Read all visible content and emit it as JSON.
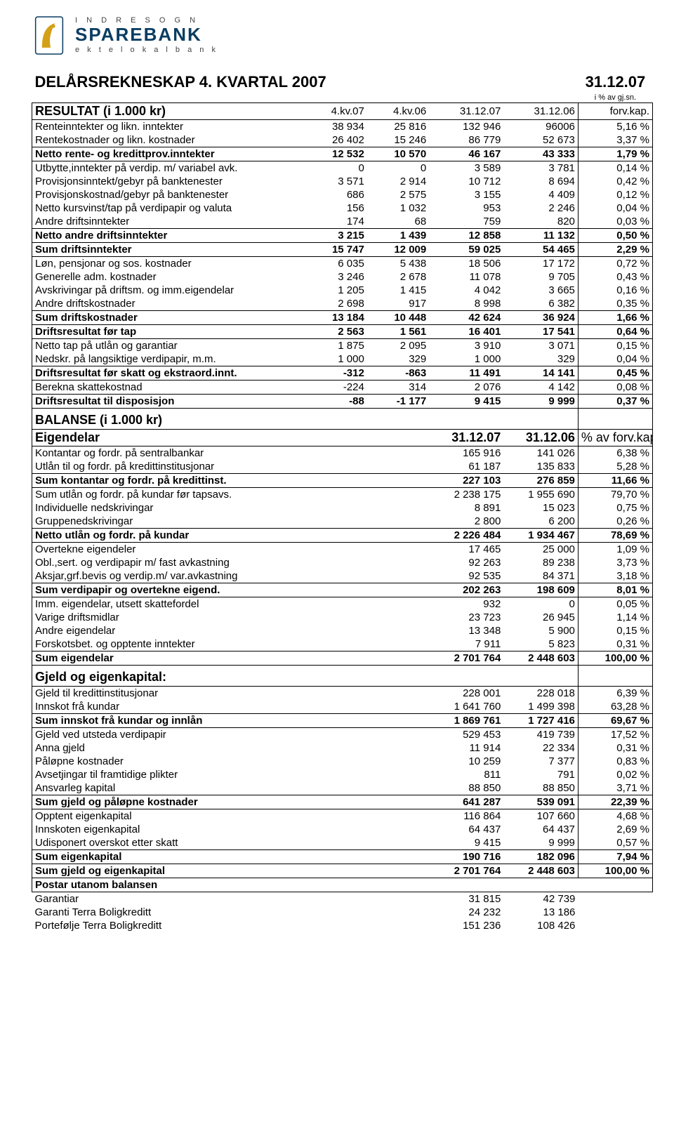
{
  "logo": {
    "top": "I N D R E   S O G N",
    "main": "SPAREBANK",
    "sub": "e k t e   l o k a l b a n k",
    "icon_color": "#d4a017",
    "border_color": "#0a3d62"
  },
  "title": "DELÅRSREKNESKAP 4. KVARTAL 2007",
  "date_hdr": "31.12.07",
  "pct_hdr": "i % av gj.sn.",
  "resultat_label": "RESULTAT  (i 1.000 kr)",
  "columns": {
    "c1": "4.kv.07",
    "c2": "4.kv.06",
    "c3": "31.12.07",
    "c4": "31.12.06",
    "c5": "forv.kap."
  },
  "sections": [
    {
      "group": "resultat",
      "rows": [
        {
          "label": "Renteinntekter og likn. inntekter",
          "v": [
            "38 934",
            "25 816",
            "132 946",
            "96006",
            "5,16 %"
          ]
        },
        {
          "label": "Rentekostnader og likn. kostnader",
          "v": [
            "26 402",
            "15 246",
            "86 779",
            "52 673",
            "3,37 %"
          ]
        }
      ]
    },
    {
      "group": "netto_rente",
      "bold": true,
      "rows": [
        {
          "label": "Netto rente- og kredittprov.inntekter",
          "v": [
            "12 532",
            "10 570",
            "46 167",
            "43 333",
            "1,79 %"
          ]
        }
      ]
    },
    {
      "group": "r2",
      "rows": [
        {
          "label": "Utbytte,inntekter på verdip. m/ variabel avk.",
          "v": [
            "0",
            "0",
            "3 589",
            "3 781",
            "0,14 %"
          ]
        },
        {
          "label": "Provisjonsinntekt/gebyr på banktenester",
          "v": [
            "3 571",
            "2 914",
            "10 712",
            "8 694",
            "0,42 %"
          ]
        },
        {
          "label": "Provisjonskostnad/gebyr på banktenester",
          "v": [
            "686",
            "2 575",
            "3 155",
            "4 409",
            "0,12 %"
          ]
        },
        {
          "label": "Netto kursvinst/tap på verdipapir og valuta",
          "v": [
            "156",
            "1 032",
            "953",
            "2 246",
            "0,04 %"
          ]
        },
        {
          "label": "Andre driftsinntekter",
          "v": [
            "174",
            "68",
            "759",
            "820",
            "0,03 %"
          ]
        }
      ]
    },
    {
      "group": "netto_andre",
      "bold": true,
      "rows": [
        {
          "label": "Netto andre driftsinntekter",
          "v": [
            "3 215",
            "1 439",
            "12 858",
            "11 132",
            "0,50 %"
          ]
        }
      ]
    },
    {
      "group": "sum_drift_innt",
      "bold": true,
      "rows": [
        {
          "label": "Sum driftsinntekter",
          "v": [
            "15 747",
            "12 009",
            "59 025",
            "54 465",
            "2,29 %"
          ]
        }
      ]
    },
    {
      "group": "r3",
      "rows": [
        {
          "label": "Løn, pensjonar og sos. kostnader",
          "v": [
            "6 035",
            "5 438",
            "18 506",
            "17 172",
            "0,72 %"
          ]
        },
        {
          "label": "Generelle adm. kostnader",
          "v": [
            "3 246",
            "2 678",
            "11 078",
            "9 705",
            "0,43 %"
          ]
        },
        {
          "label": "Avskrivingar på driftsm. og imm.eigendelar",
          "v": [
            "1 205",
            "1 415",
            "4 042",
            "3 665",
            "0,16 %"
          ]
        },
        {
          "label": "Andre driftskostnader",
          "v": [
            "2 698",
            "917",
            "8 998",
            "6 382",
            "0,35 %"
          ]
        }
      ]
    },
    {
      "group": "sum_drift_kost",
      "bold": true,
      "rows": [
        {
          "label": "Sum driftskostnader",
          "v": [
            "13 184",
            "10 448",
            "42 624",
            "36 924",
            "1,66 %"
          ]
        }
      ]
    },
    {
      "group": "dr_for_tap",
      "bold": true,
      "rows": [
        {
          "label": "Driftsresultat før tap",
          "v": [
            "2 563",
            "1 561",
            "16 401",
            "17 541",
            "0,64 %"
          ]
        }
      ]
    },
    {
      "group": "r4",
      "rows": [
        {
          "label": "Netto tap på utlån og garantiar",
          "v": [
            "1 875",
            "2 095",
            "3 910",
            "3 071",
            "0,15 %"
          ]
        },
        {
          "label": "Nedskr. på langsiktige verdipapir, m.m.",
          "v": [
            "1 000",
            "329",
            "1 000",
            "329",
            "0,04 %"
          ]
        }
      ]
    },
    {
      "group": "dr_for_skatt",
      "bold": true,
      "rows": [
        {
          "label": "Driftsresultat før skatt og ekstraord.innt.",
          "v": [
            "-312",
            "-863",
            "11 491",
            "14 141",
            "0,45 %"
          ]
        }
      ]
    },
    {
      "group": "r5",
      "rows": [
        {
          "label": "Berekna skattekostnad",
          "v": [
            "-224",
            "314",
            "2 076",
            "4 142",
            "0,08 %"
          ]
        }
      ]
    },
    {
      "group": "dr_disp",
      "bold": true,
      "rows": [
        {
          "label": "Driftsresultat til disposisjon",
          "v": [
            "-88",
            "-1 177",
            "9 415",
            "9 999",
            "0,37 %"
          ]
        }
      ]
    }
  ],
  "balanse_title": "BALANSE   (i 1.000 kr)",
  "eigendelar_label": "Eigendelar",
  "bal_cols": {
    "c3": "31.12.07",
    "c4": "31.12.06",
    "c5": "% av forv.kap."
  },
  "bal_sections": [
    {
      "group": "b1",
      "rows": [
        {
          "label": "Kontantar og fordr. på sentralbankar",
          "v": [
            "",
            "",
            "165 916",
            "141 026",
            "6,38 %"
          ]
        },
        {
          "label": "Utlån til og fordr. på kredittinstitusjonar",
          "v": [
            "",
            "",
            "61 187",
            "135 833",
            "5,28 %"
          ]
        }
      ]
    },
    {
      "group": "sum_kont",
      "bold": true,
      "rows": [
        {
          "label": "Sum kontantar og fordr. på kredittinst.",
          "v": [
            "",
            "",
            "227 103",
            "276 859",
            "11,66 %"
          ]
        }
      ]
    },
    {
      "group": "b2",
      "rows": [
        {
          "label": "Sum utlån og fordr. på kundar før tapsavs.",
          "v": [
            "",
            "",
            "2 238 175",
            "1 955 690",
            "79,70 %"
          ]
        },
        {
          "label": "Individuelle nedskrivingar",
          "v": [
            "",
            "",
            "8 891",
            "15 023",
            "0,75 %"
          ]
        },
        {
          "label": "Gruppenedskrivingar",
          "v": [
            "",
            "",
            "2 800",
            "6 200",
            "0,26 %"
          ]
        }
      ]
    },
    {
      "group": "netto_utlan",
      "bold": true,
      "rows": [
        {
          "label": "Netto utlån og fordr. på kundar",
          "v": [
            "",
            "",
            "2 226 484",
            "1 934 467",
            "78,69 %"
          ]
        }
      ]
    },
    {
      "group": "b3",
      "rows": [
        {
          "label": "Overtekne eigendeler",
          "v": [
            "",
            "",
            "17 465",
            "25 000",
            "1,09 %"
          ]
        },
        {
          "label": "Obl.,sert. og verdipapir m/ fast avkastning",
          "v": [
            "",
            "",
            "92 263",
            "89 238",
            "3,73 %"
          ]
        },
        {
          "label": "Aksjar,grf.bevis og verdip.m/ var.avkastning",
          "v": [
            "",
            "",
            "92 535",
            "84 371",
            "3,18 %"
          ]
        }
      ]
    },
    {
      "group": "sum_verdi",
      "bold": true,
      "rows": [
        {
          "label": "Sum verdipapir og overtekne eigend.",
          "v": [
            "",
            "",
            "202 263",
            "198 609",
            "8,01 %"
          ]
        }
      ]
    },
    {
      "group": "b4",
      "rows": [
        {
          "label": "Imm. eigendelar, utsett skattefordel",
          "v": [
            "",
            "",
            "932",
            "0",
            "0,05 %"
          ]
        },
        {
          "label": "Varige driftsmidlar",
          "v": [
            "",
            "",
            "23 723",
            "26 945",
            "1,14 %"
          ]
        },
        {
          "label": "Andre eigendelar",
          "v": [
            "",
            "",
            "13 348",
            "5 900",
            "0,15 %"
          ]
        },
        {
          "label": "Forskotsbet. og opptente inntekter",
          "v": [
            "",
            "",
            "7 911",
            "5 823",
            "0,31 %"
          ]
        }
      ]
    },
    {
      "group": "sum_eig",
      "bold": true,
      "rows": [
        {
          "label": "Sum eigendelar",
          "v": [
            "",
            "",
            "2 701 764",
            "2 448 603",
            "100,00 %"
          ]
        }
      ]
    }
  ],
  "gjeld_title": "Gjeld og eigenkapital:",
  "gjeld_sections": [
    {
      "group": "g1",
      "rows": [
        {
          "label": "Gjeld til kredittinstitusjonar",
          "v": [
            "",
            "",
            "228 001",
            "228 018",
            "6,39 %"
          ]
        },
        {
          "label": "Innskot frå kundar",
          "v": [
            "",
            "",
            "1 641 760",
            "1 499 398",
            "63,28 %"
          ]
        }
      ]
    },
    {
      "group": "sum_innsk",
      "bold": true,
      "rows": [
        {
          "label": "Sum innskot frå kundar og innlån",
          "v": [
            "",
            "",
            "1 869 761",
            "1 727 416",
            "69,67 %"
          ]
        }
      ]
    },
    {
      "group": "g2",
      "rows": [
        {
          "label": "Gjeld ved utsteda verdipapir",
          "v": [
            "",
            "",
            "529 453",
            "419 739",
            "17,52 %"
          ]
        },
        {
          "label": "Anna gjeld",
          "v": [
            "",
            "",
            "11 914",
            "22 334",
            "0,31 %"
          ]
        },
        {
          "label": "Påløpne kostnader",
          "v": [
            "",
            "",
            "10 259",
            "7 377",
            "0,83 %"
          ]
        },
        {
          "label": "Avsetjingar til framtidige plikter",
          "v": [
            "",
            "",
            "811",
            "791",
            "0,02 %"
          ]
        },
        {
          "label": "Ansvarleg kapital",
          "v": [
            "",
            "",
            "88 850",
            "88 850",
            "3,71 %"
          ]
        }
      ]
    },
    {
      "group": "sum_gjeld",
      "bold": true,
      "rows": [
        {
          "label": "Sum gjeld og påløpne kostnader",
          "v": [
            "",
            "",
            "641 287",
            "539 091",
            "22,39 %"
          ]
        }
      ]
    },
    {
      "group": "g3",
      "rows": [
        {
          "label": "Opptent eigenkapital",
          "v": [
            "",
            "",
            "116 864",
            "107 660",
            "4,68 %"
          ]
        },
        {
          "label": "Innskoten eigenkapital",
          "v": [
            "",
            "",
            "64 437",
            "64 437",
            "2,69 %"
          ]
        },
        {
          "label": "Udisponert overskot etter skatt",
          "v": [
            "",
            "",
            "9 415",
            "9 999",
            "0,57 %"
          ]
        }
      ]
    },
    {
      "group": "sum_ek",
      "bold": true,
      "rows": [
        {
          "label": "Sum eigenkapital",
          "v": [
            "",
            "",
            "190 716",
            "182 096",
            "7,94 %"
          ]
        }
      ]
    },
    {
      "group": "sum_gj_ek",
      "bold": true,
      "rows": [
        {
          "label": "Sum gjeld og eigenkapital",
          "v": [
            "",
            "",
            "2 701 764",
            "2 448 603",
            "100,00 %"
          ]
        }
      ]
    }
  ],
  "postar_title": "Postar utanom balansen",
  "postar_rows": [
    {
      "label": "Garantiar",
      "v": [
        "",
        "",
        "31 815",
        "42 739",
        ""
      ]
    },
    {
      "label": "Garanti Terra Boligkreditt",
      "v": [
        "",
        "",
        "24 232",
        "13 186",
        ""
      ]
    },
    {
      "label": "Portefølje Terra Boligkreditt",
      "v": [
        "",
        "",
        "151 236",
        "108 426",
        ""
      ]
    }
  ]
}
